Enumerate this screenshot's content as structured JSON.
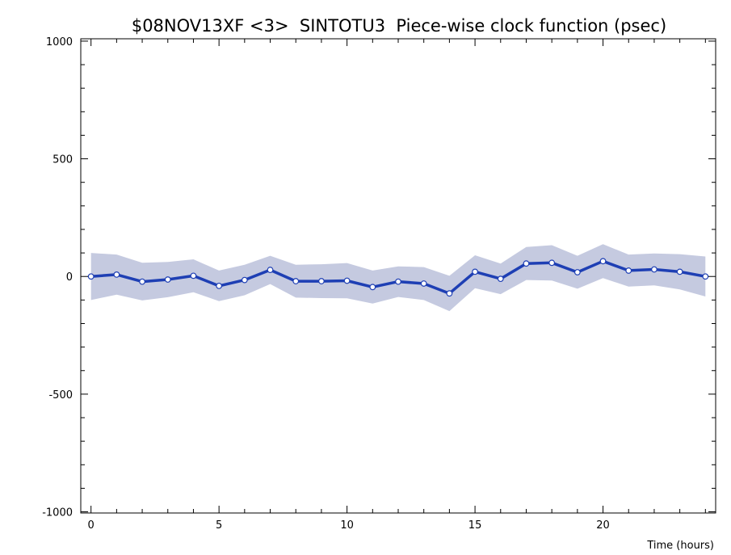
{
  "chart_data": {
    "type": "line",
    "title": "$08NOV13XF <3>  SINTOTU3  Piece-wise clock function (psec)",
    "xlabel": "Time (hours)",
    "ylabel": "",
    "xlim": [
      -0.4,
      24.4
    ],
    "ylim": [
      -1005,
      1010
    ],
    "x_ticks": [
      0,
      5,
      10,
      15,
      20
    ],
    "y_ticks": [
      -1000,
      -500,
      0,
      500,
      1000
    ],
    "x_tick_labels": [
      "0",
      "5",
      "10",
      "15",
      "20"
    ],
    "y_tick_labels": [
      "-1000",
      "-500",
      "0",
      "500",
      "1000"
    ],
    "grid": false,
    "series": [
      {
        "x": [
          0,
          1,
          2,
          3,
          4,
          5,
          6,
          7,
          8,
          9,
          10,
          11,
          12,
          13,
          14,
          15,
          16,
          17,
          18,
          19,
          20,
          21,
          22,
          23,
          24
        ],
        "values": [
          0,
          8,
          -22,
          -13,
          3,
          -40,
          -15,
          28,
          -20,
          -20,
          -18,
          -45,
          -22,
          -30,
          -72,
          20,
          -10,
          55,
          58,
          18,
          65,
          25,
          30,
          20,
          0
        ],
        "error": [
          100,
          85,
          80,
          75,
          70,
          65,
          65,
          60,
          70,
          72,
          75,
          70,
          65,
          70,
          75,
          70,
          65,
          70,
          75,
          70,
          72,
          68,
          68,
          75,
          85
        ]
      }
    ],
    "colors": {
      "line": "#1e3fb4",
      "band": "#c5cae0",
      "marker_fill": "#ffffff",
      "axis": "#000000"
    }
  }
}
